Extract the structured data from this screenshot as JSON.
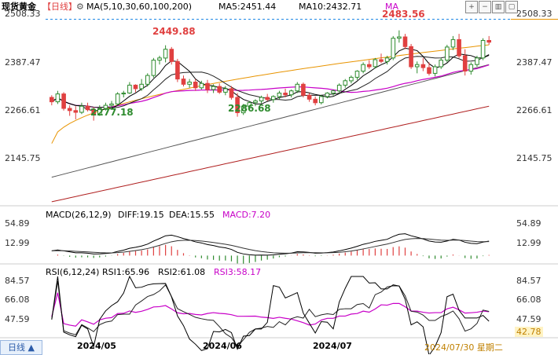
{
  "header": {
    "symbol": "现货黄金",
    "period": "【日线】",
    "ma_label": "MA(5,10,30,60,100,200)",
    "ma5": "MA5:2451.44",
    "ma10": "MA10:2432.71",
    "ma_more": "MA",
    "current_price": "2508.33"
  },
  "colors": {
    "up": "#2e8b2e",
    "down": "#e04040",
    "ma5": "#000000",
    "ma10": "#222222",
    "ma30": "#c800c8",
    "ma60": "#e89400",
    "ma100": "#555555",
    "ma200": "#b02020",
    "hline": "#1e88e5",
    "macd_dif": "#000000",
    "macd_dea": "#333333",
    "rsi1": "#000000",
    "rsi2": "#222222",
    "rsi3": "#c800c8"
  },
  "price_axis": {
    "ticks": [
      "2508.33",
      "2387.47",
      "2266.61",
      "2145.75"
    ]
  },
  "annotations": {
    "high_1": "2449.88",
    "low_1": "2277.18",
    "low_2": "2286.68",
    "high_2": "2483.56"
  },
  "macd": {
    "label": "MACD(26,12,9)",
    "diff": "DIFF:19.15",
    "dea": "DEA:15.55",
    "macd": "MACD:7.20",
    "axis": [
      "54.89",
      "12.99"
    ]
  },
  "rsi": {
    "label": "RSI(6,12,24)",
    "rsi1": "RSI1:65.96",
    "rsi2": "RSI2:61.08",
    "rsi3": "RSI3:58.17",
    "axis": [
      "84.57",
      "66.08",
      "47.59",
      "42.78"
    ]
  },
  "x_axis": {
    "labels": [
      "2024/05",
      "2024/06",
      "2024/07"
    ],
    "cursor_date": "2024/07/30 星期二"
  },
  "footer": {
    "period_button": "日线"
  },
  "chart_data": {
    "type": "candlestick",
    "title": "现货黄金 【日线】",
    "ylim": [
      2090,
      2520
    ],
    "grid": false,
    "x_axis_labels": [
      "2024/05",
      "2024/06",
      "2024/07"
    ],
    "y_ticks": [
      2508.33,
      2387.47,
      2266.61,
      2145.75
    ],
    "candles": [
      [
        2330,
        2335,
        2312,
        2320
      ],
      [
        2320,
        2345,
        2315,
        2338
      ],
      [
        2338,
        2342,
        2300,
        2305
      ],
      [
        2305,
        2312,
        2288,
        2300
      ],
      [
        2300,
        2310,
        2280,
        2296
      ],
      [
        2296,
        2318,
        2292,
        2310
      ],
      [
        2310,
        2318,
        2298,
        2302
      ],
      [
        2302,
        2308,
        2277,
        2290
      ],
      [
        2290,
        2312,
        2288,
        2305
      ],
      [
        2305,
        2318,
        2300,
        2312
      ],
      [
        2312,
        2322,
        2306,
        2315
      ],
      [
        2315,
        2342,
        2312,
        2338
      ],
      [
        2338,
        2345,
        2330,
        2340
      ],
      [
        2340,
        2365,
        2338,
        2358
      ],
      [
        2358,
        2360,
        2342,
        2350
      ],
      [
        2350,
        2372,
        2345,
        2360
      ],
      [
        2360,
        2385,
        2355,
        2380
      ],
      [
        2380,
        2420,
        2375,
        2415
      ],
      [
        2415,
        2425,
        2405,
        2420
      ],
      [
        2420,
        2449,
        2410,
        2440
      ],
      [
        2440,
        2445,
        2405,
        2412
      ],
      [
        2412,
        2418,
        2365,
        2372
      ],
      [
        2372,
        2380,
        2355,
        2360
      ],
      [
        2360,
        2372,
        2352,
        2365
      ],
      [
        2365,
        2372,
        2345,
        2352
      ],
      [
        2352,
        2368,
        2348,
        2362
      ],
      [
        2362,
        2370,
        2340,
        2348
      ],
      [
        2348,
        2360,
        2340,
        2355
      ],
      [
        2355,
        2362,
        2338,
        2342
      ],
      [
        2342,
        2356,
        2335,
        2350
      ],
      [
        2350,
        2356,
        2325,
        2330
      ],
      [
        2330,
        2340,
        2286,
        2295
      ],
      [
        2295,
        2315,
        2290,
        2310
      ],
      [
        2310,
        2322,
        2306,
        2318
      ],
      [
        2318,
        2326,
        2310,
        2322
      ],
      [
        2322,
        2334,
        2316,
        2330
      ],
      [
        2330,
        2338,
        2322,
        2325
      ],
      [
        2325,
        2335,
        2318,
        2332
      ],
      [
        2332,
        2345,
        2326,
        2340
      ],
      [
        2340,
        2350,
        2330,
        2336
      ],
      [
        2336,
        2348,
        2330,
        2345
      ],
      [
        2345,
        2365,
        2340,
        2360
      ],
      [
        2360,
        2364,
        2330,
        2335
      ],
      [
        2335,
        2340,
        2320,
        2326
      ],
      [
        2326,
        2332,
        2312,
        2318
      ],
      [
        2318,
        2336,
        2314,
        2332
      ],
      [
        2332,
        2342,
        2328,
        2340
      ],
      [
        2340,
        2348,
        2334,
        2345
      ],
      [
        2345,
        2362,
        2340,
        2358
      ],
      [
        2358,
        2372,
        2352,
        2368
      ],
      [
        2368,
        2380,
        2362,
        2376
      ],
      [
        2376,
        2392,
        2370,
        2390
      ],
      [
        2390,
        2410,
        2385,
        2405
      ],
      [
        2405,
        2415,
        2395,
        2400
      ],
      [
        2400,
        2420,
        2396,
        2416
      ],
      [
        2416,
        2430,
        2408,
        2412
      ],
      [
        2412,
        2425,
        2405,
        2420
      ],
      [
        2420,
        2470,
        2415,
        2465
      ],
      [
        2465,
        2483,
        2455,
        2468
      ],
      [
        2468,
        2475,
        2440,
        2446
      ],
      [
        2446,
        2452,
        2395,
        2400
      ],
      [
        2400,
        2412,
        2385,
        2405
      ],
      [
        2405,
        2420,
        2390,
        2398
      ],
      [
        2398,
        2410,
        2380,
        2385
      ],
      [
        2385,
        2405,
        2378,
        2400
      ],
      [
        2400,
        2420,
        2395,
        2415
      ],
      [
        2415,
        2450,
        2410,
        2445
      ],
      [
        2445,
        2470,
        2438,
        2462
      ],
      [
        2462,
        2475,
        2420,
        2425
      ],
      [
        2425,
        2440,
        2380,
        2390
      ],
      [
        2390,
        2410,
        2382,
        2405
      ],
      [
        2405,
        2425,
        2400,
        2420
      ],
      [
        2420,
        2465,
        2415,
        2460
      ],
      [
        2460,
        2470,
        2450,
        2456
      ]
    ],
    "moving_averages": {
      "MA5": "rolling mean of close (5)",
      "MA10": "rolling mean of close (10)",
      "MA30": "rolling mean of close (30)",
      "MA60": [
        2225,
        2450
      ],
      "MA100": [
        2148,
        2405
      ],
      "MA200": [
        2092,
        2310
      ]
    },
    "macd_panel": {
      "ylim": [
        -10,
        60
      ],
      "ticks": [
        54.89,
        12.99
      ]
    },
    "rsi_panel": {
      "ylim": [
        35,
        95
      ],
      "ticks": [
        84.57,
        66.08,
        47.59
      ]
    }
  }
}
